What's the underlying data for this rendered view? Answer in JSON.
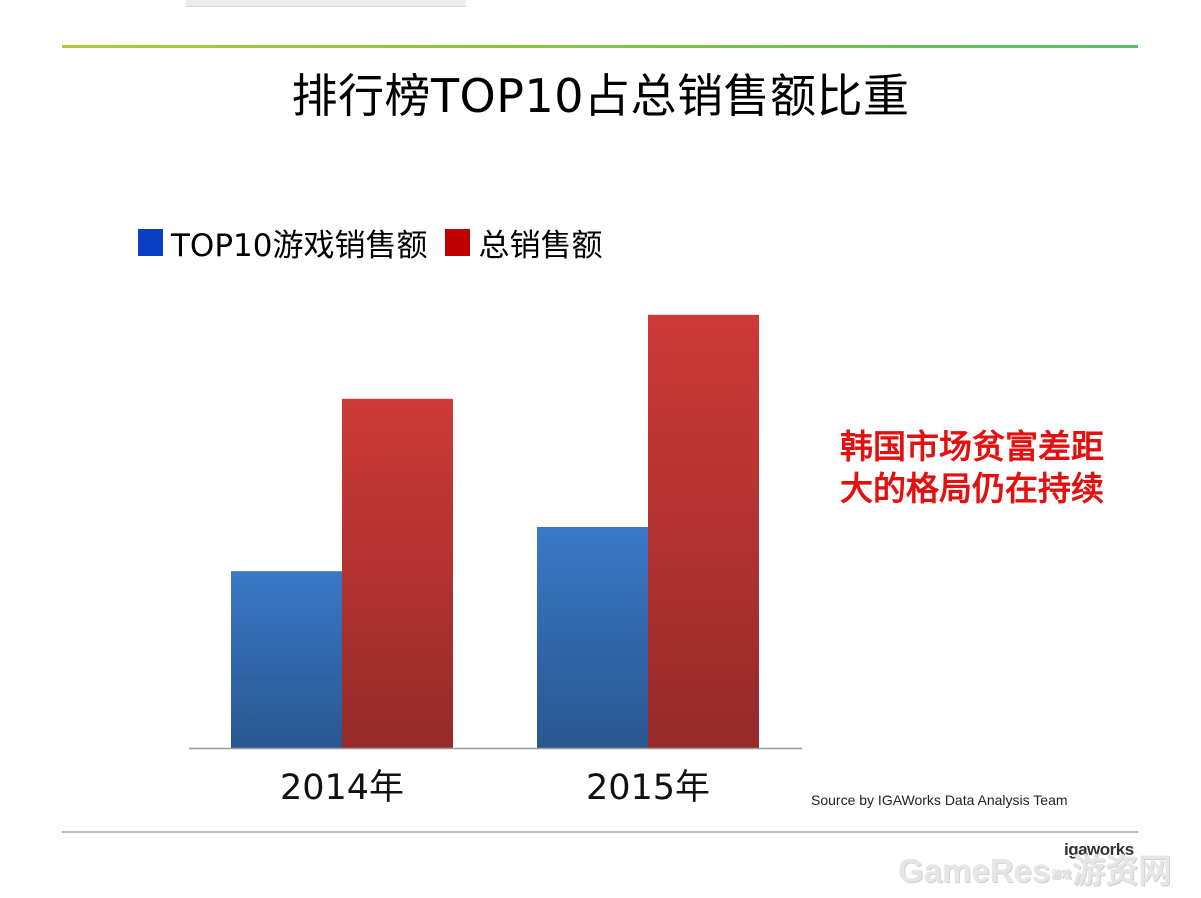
{
  "header": {
    "title": "排行榜TOP10占总销售额比重"
  },
  "colors": {
    "top10": "#3a78c6",
    "top10_dark": "#28578f",
    "total": "#cd3a36",
    "total_dark": "#962a2a",
    "legend_top10": "#0b3fc4",
    "legend_total": "#c00000",
    "callout": "#e31010"
  },
  "chart_data": {
    "type": "bar",
    "title": "排行榜TOP10占总销售额比重",
    "categories": [
      "2014年",
      "2015年"
    ],
    "series": [
      {
        "name": "TOP10游戏销售额",
        "values": [
          40,
          50
        ]
      },
      {
        "name": "总销售额",
        "values": [
          79,
          98
        ]
      }
    ],
    "xlabel": "",
    "ylabel": "",
    "ylim": [
      0,
      100
    ],
    "grid": false,
    "legend_position": "top-left"
  },
  "callout": {
    "line1": "韩国市场贫富差距",
    "line2": "大的格局仍在持续"
  },
  "footer": {
    "source": "Source by IGAWorks Data Analysis Team",
    "logo": "igaworks",
    "watermark_en": "GameRes",
    "watermark_sep": "游戏",
    "watermark_cn": "游资网"
  }
}
